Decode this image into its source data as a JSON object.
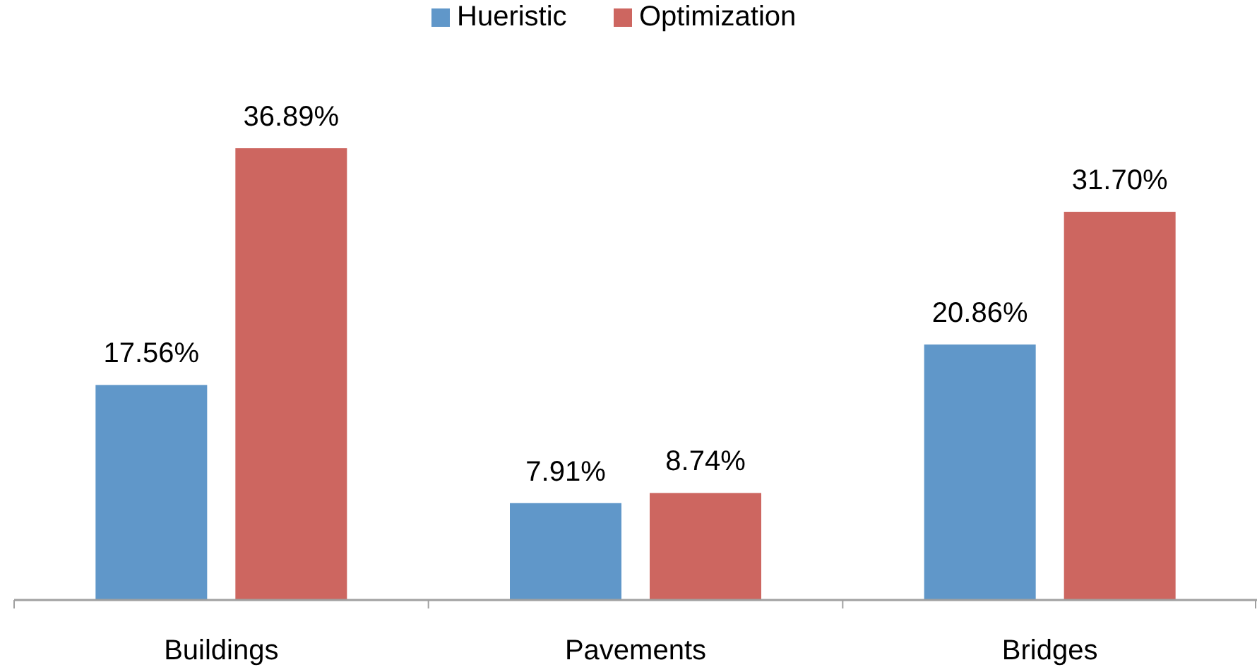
{
  "chart_data": {
    "type": "bar",
    "categories": [
      "Buildings",
      "Pavements",
      "Bridges"
    ],
    "series": [
      {
        "name": "Hueristic",
        "color": "#6097c9",
        "values": [
          17.56,
          7.91,
          20.86
        ],
        "value_labels": [
          "17.56%",
          "7.91%",
          "20.86%"
        ]
      },
      {
        "name": "Optimization",
        "color": "#cd6660",
        "values": [
          36.89,
          8.74,
          31.7
        ],
        "value_labels": [
          "36.89%",
          "8.74%",
          "31.70%"
        ]
      }
    ],
    "legend": "top"
  }
}
